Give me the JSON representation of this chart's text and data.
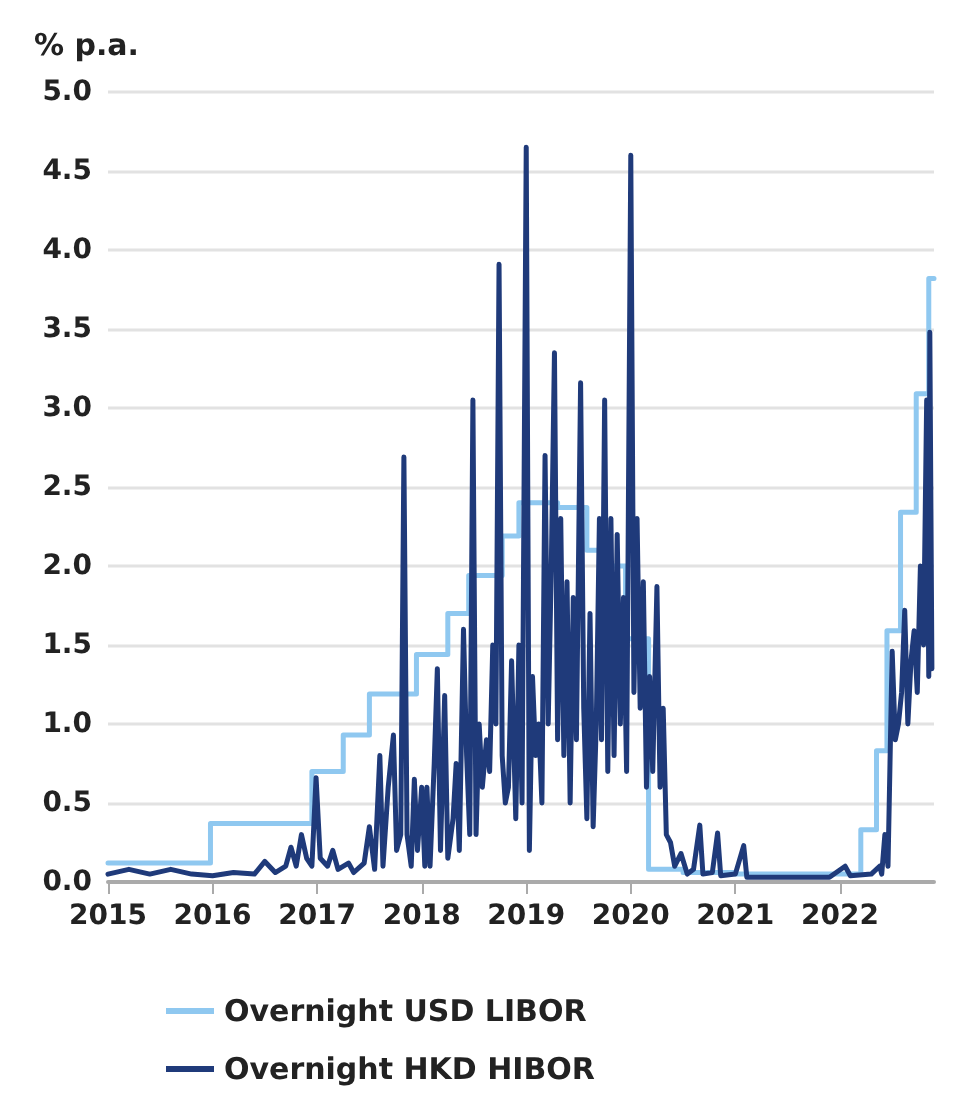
{
  "chart_data": {
    "type": "step",
    "ylabel": "% p.a.",
    "xlim": [
      2015,
      2022.9
    ],
    "xticks": [
      2015,
      2016,
      2017,
      2018,
      2019,
      2020,
      2021,
      2022
    ],
    "ylim": [
      0,
      5
    ],
    "yticks": [
      {
        "value": 0,
        "label": "0.0"
      },
      {
        "value": 0.5,
        "label": "0.5"
      },
      {
        "value": 1,
        "label": "1.0"
      },
      {
        "value": 1.5,
        "label": "1.5"
      },
      {
        "value": 2,
        "label": "2.0"
      },
      {
        "value": 2.5,
        "label": "2.5"
      },
      {
        "value": 3,
        "label": "3.0"
      },
      {
        "value": 3.5,
        "label": "3.5"
      },
      {
        "value": 4,
        "label": "4.0"
      },
      {
        "value": 4.5,
        "label": "4.5"
      },
      {
        "value": 5,
        "label": "5.0"
      }
    ],
    "grid": "y",
    "legend": "bottom",
    "marker": "none",
    "line_style": "solid",
    "series": [
      {
        "name": "Overnight USD LIBOR",
        "color": "#8fc8f0",
        "x": [
          2015,
          2015.98,
          2016.95,
          2017.25,
          2017.5,
          2017.95,
          2018.25,
          2018.45,
          2018.77,
          2018.93,
          2019.3,
          2019.58,
          2019.7,
          2019.95,
          2020.17,
          2020.5,
          2021.0,
          2022.2,
          2022.35,
          2022.45,
          2022.58,
          2022.73,
          2022.85,
          2022.9
        ],
        "values": [
          0.12,
          0.37,
          0.7,
          0.93,
          1.19,
          1.44,
          1.7,
          1.94,
          2.19,
          2.4,
          2.37,
          2.1,
          2.0,
          1.54,
          0.08,
          0.06,
          0.05,
          0.33,
          0.83,
          1.59,
          2.34,
          3.09,
          3.82,
          3.82
        ]
      },
      {
        "name": "Overnight HKD HIBOR",
        "type": "line",
        "color": "#1f3a7a",
        "x": [
          2015.0,
          2015.2,
          2015.4,
          2015.6,
          2015.8,
          2016.0,
          2016.2,
          2016.4,
          2016.5,
          2016.6,
          2016.7,
          2016.75,
          2016.8,
          2016.85,
          2016.9,
          2016.95,
          2016.99,
          2017.03,
          2017.1,
          2017.15,
          2017.2,
          2017.3,
          2017.35,
          2017.45,
          2017.5,
          2017.55,
          2017.6,
          2017.63,
          2017.68,
          2017.73,
          2017.76,
          2017.8,
          2017.83,
          2017.86,
          2017.9,
          2017.93,
          2017.96,
          2018.0,
          2018.03,
          2018.05,
          2018.08,
          2018.12,
          2018.15,
          2018.18,
          2018.22,
          2018.25,
          2018.3,
          2018.33,
          2018.36,
          2018.4,
          2018.43,
          2018.46,
          2018.49,
          2018.52,
          2018.55,
          2018.58,
          2018.62,
          2018.65,
          2018.68,
          2018.71,
          2018.74,
          2018.77,
          2018.8,
          2018.83,
          2018.86,
          2018.9,
          2018.93,
          2018.96,
          2019.0,
          2019.03,
          2019.06,
          2019.09,
          2019.12,
          2019.15,
          2019.18,
          2019.21,
          2019.24,
          2019.27,
          2019.3,
          2019.33,
          2019.36,
          2019.39,
          2019.42,
          2019.45,
          2019.48,
          2019.52,
          2019.55,
          2019.58,
          2019.61,
          2019.64,
          2019.67,
          2019.7,
          2019.72,
          2019.75,
          2019.78,
          2019.81,
          2019.84,
          2019.87,
          2019.9,
          2019.93,
          2019.96,
          2020.0,
          2020.03,
          2020.06,
          2020.09,
          2020.12,
          2020.15,
          2020.18,
          2020.21,
          2020.25,
          2020.28,
          2020.31,
          2020.34,
          2020.38,
          2020.42,
          2020.48,
          2020.54,
          2020.6,
          2020.66,
          2020.69,
          2020.78,
          2020.83,
          2020.86,
          2021.0,
          2021.08,
          2021.11,
          2021.5,
          2021.9,
          2022.05,
          2022.1,
          2022.3,
          2022.38,
          2022.4,
          2022.43,
          2022.46,
          2022.5,
          2022.53,
          2022.56,
          2022.59,
          2022.62,
          2022.65,
          2022.68,
          2022.71,
          2022.74,
          2022.77,
          2022.8,
          2022.83,
          2022.85,
          2022.86,
          2022.88
        ],
        "values": [
          0.05,
          0.08,
          0.05,
          0.08,
          0.05,
          0.04,
          0.06,
          0.05,
          0.13,
          0.06,
          0.1,
          0.22,
          0.1,
          0.3,
          0.15,
          0.1,
          0.66,
          0.15,
          0.1,
          0.2,
          0.08,
          0.12,
          0.06,
          0.12,
          0.35,
          0.08,
          0.8,
          0.1,
          0.6,
          0.93,
          0.2,
          0.3,
          2.69,
          0.3,
          0.1,
          0.65,
          0.2,
          0.6,
          0.1,
          0.6,
          0.1,
          0.75,
          1.35,
          0.2,
          1.18,
          0.15,
          0.4,
          0.75,
          0.2,
          1.6,
          0.8,
          0.3,
          3.05,
          0.3,
          1.0,
          0.6,
          0.9,
          0.7,
          1.5,
          1.0,
          3.91,
          0.8,
          0.5,
          0.6,
          1.4,
          0.4,
          1.5,
          0.5,
          4.65,
          0.2,
          1.3,
          0.8,
          1.0,
          0.5,
          2.7,
          1.0,
          2.0,
          3.35,
          0.9,
          2.3,
          0.8,
          1.9,
          0.5,
          1.8,
          0.9,
          3.16,
          1.1,
          0.4,
          1.7,
          0.35,
          1.0,
          2.3,
          0.9,
          3.05,
          0.7,
          2.3,
          0.8,
          2.2,
          1.0,
          1.8,
          0.7,
          4.6,
          1.2,
          2.3,
          1.1,
          1.9,
          0.6,
          1.3,
          0.7,
          1.87,
          0.6,
          1.1,
          0.3,
          0.25,
          0.1,
          0.18,
          0.05,
          0.08,
          0.36,
          0.05,
          0.06,
          0.31,
          0.04,
          0.05,
          0.23,
          0.03,
          0.03,
          0.03,
          0.1,
          0.04,
          0.05,
          0.1,
          0.05,
          0.3,
          0.1,
          1.46,
          0.9,
          1.0,
          1.2,
          1.72,
          1.0,
          1.4,
          1.59,
          1.2,
          2.0,
          1.5,
          3.05,
          1.3,
          3.48,
          1.35
        ]
      }
    ]
  }
}
